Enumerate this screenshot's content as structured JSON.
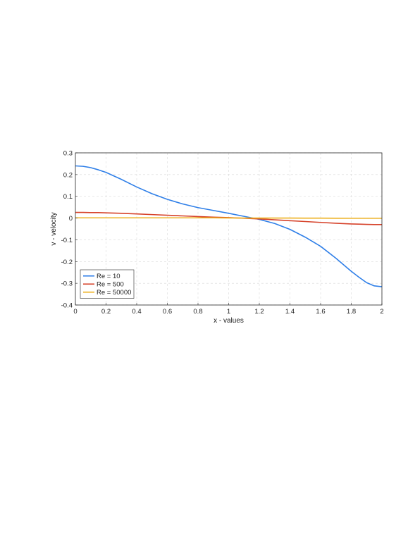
{
  "chart_data": {
    "type": "line",
    "title": "",
    "xlabel": "x - values",
    "ylabel": "v - velocity",
    "xlim": [
      0,
      2
    ],
    "ylim": [
      -0.4,
      0.3
    ],
    "xticks": [
      0,
      0.2,
      0.4,
      0.6,
      0.8,
      1,
      1.2,
      1.4,
      1.6,
      1.8,
      2
    ],
    "yticks": [
      -0.4,
      -0.3,
      -0.2,
      -0.1,
      0,
      0.1,
      0.2,
      0.3
    ],
    "grid": true,
    "legend_position": "bottom-left",
    "x": [
      0,
      0.05,
      0.1,
      0.15,
      0.2,
      0.3,
      0.4,
      0.5,
      0.6,
      0.7,
      0.8,
      0.9,
      1.0,
      1.1,
      1.2,
      1.3,
      1.4,
      1.5,
      1.6,
      1.7,
      1.8,
      1.85,
      1.9,
      1.95,
      2.0
    ],
    "series": [
      {
        "name": "Re = 10",
        "color": "#2F7FE8",
        "values": [
          0.24,
          0.238,
          0.232,
          0.222,
          0.21,
          0.178,
          0.143,
          0.112,
          0.086,
          0.065,
          0.048,
          0.035,
          0.022,
          0.008,
          -0.006,
          -0.025,
          -0.052,
          -0.088,
          -0.13,
          -0.185,
          -0.245,
          -0.272,
          -0.297,
          -0.312,
          -0.316
        ]
      },
      {
        "name": "Re = 500",
        "color": "#D6422A",
        "values": [
          0.026,
          0.026,
          0.025,
          0.025,
          0.024,
          0.022,
          0.019,
          0.016,
          0.013,
          0.01,
          0.007,
          0.004,
          0.002,
          -0.001,
          -0.004,
          -0.008,
          -0.012,
          -0.016,
          -0.02,
          -0.024,
          -0.027,
          -0.028,
          -0.029,
          -0.03,
          -0.03
        ]
      },
      {
        "name": "Re = 50000",
        "color": "#EDB120",
        "values": [
          0.001,
          0.001,
          0.001,
          0.001,
          0.001,
          0.001,
          0.001,
          0.001,
          0.001,
          0.001,
          0.001,
          0.001,
          0.0005,
          0.0,
          0.0,
          0.0,
          0.0,
          -0.0003,
          -0.0005,
          -0.0008,
          -0.001,
          -0.001,
          -0.001,
          -0.001,
          -0.001
        ]
      }
    ]
  }
}
